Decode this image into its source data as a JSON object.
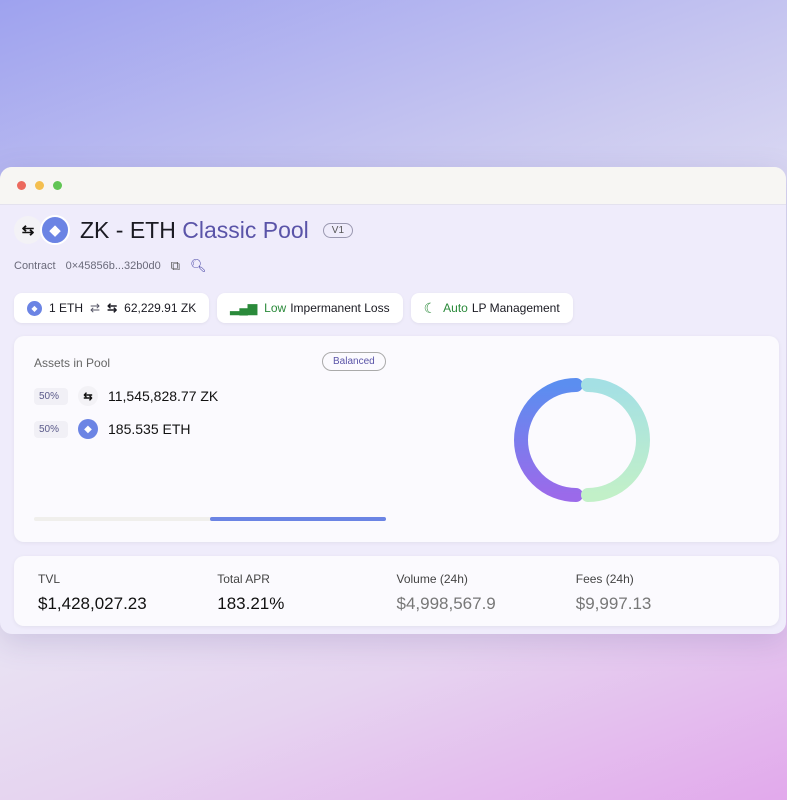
{
  "pool": {
    "token_a": "ZK",
    "separator": "-",
    "token_b": "ETH",
    "pool_type": "Classic Pool",
    "version": "V1"
  },
  "contract": {
    "label": "Contract",
    "address": "0×45856b...32b0d0"
  },
  "pills": {
    "rate": {
      "left": "1 ETH",
      "right": "62,229.91 ZK"
    },
    "il": {
      "level": "Low",
      "label": "Impermanent Loss"
    },
    "lp": {
      "mode": "Auto",
      "label": "LP Management"
    }
  },
  "assets": {
    "title": "Assets in Pool",
    "badge": "Balanced",
    "items": [
      {
        "pct": "50%",
        "amount": "11,545,828.77 ZK"
      },
      {
        "pct": "50%",
        "amount": "185.535 ETH"
      }
    ],
    "balance_fraction": 0.5
  },
  "stats": [
    {
      "label": "TVL",
      "value": "$1,428,027.23"
    },
    {
      "label": "Total APR",
      "value": "183.21%"
    },
    {
      "label": "Volume (24h)",
      "value": "$4,998,567.9"
    },
    {
      "label": "Fees (24h)",
      "value": "$9,997.13"
    }
  ],
  "colors": {
    "accent": "#5a54a8",
    "eth": "#6b84e4",
    "green": "#2a8a3a"
  }
}
